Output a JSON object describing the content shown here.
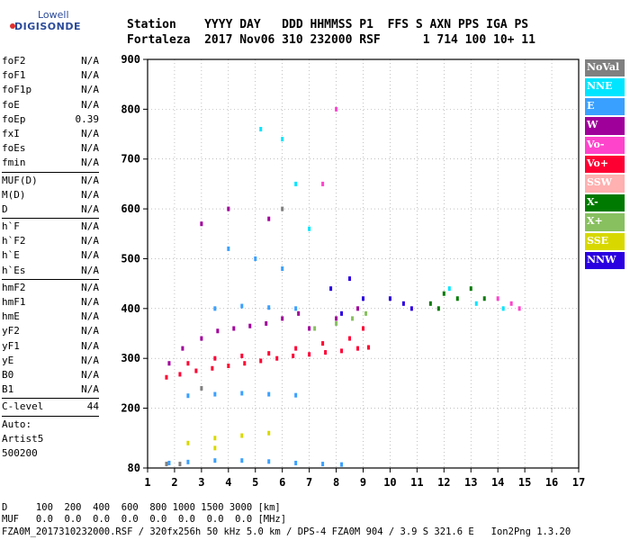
{
  "logo": {
    "line1": "Lowell",
    "line2": "DIGISONDE"
  },
  "header": {
    "line1": "Station    YYYY DAY   DDD HHMMSS P1  FFS S AXN PPS IGA PS",
    "line2": "Fortaleza  2017 Nov06 310 232000 RSF      1 714 100 10+ 11"
  },
  "scalars_group1": [
    {
      "name": "foF2",
      "value": "N/A"
    },
    {
      "name": "foF1",
      "value": "N/A"
    },
    {
      "name": "foF1p",
      "value": "N/A"
    },
    {
      "name": "foE",
      "value": "N/A"
    },
    {
      "name": "foEp",
      "value": "0.39"
    },
    {
      "name": "fxI",
      "value": "N/A"
    },
    {
      "name": "foEs",
      "value": "N/A"
    },
    {
      "name": "fmin",
      "value": "N/A"
    }
  ],
  "scalars_group2": [
    {
      "name": "MUF(D)",
      "value": "N/A"
    },
    {
      "name": "M(D)",
      "value": "N/A"
    },
    {
      "name": "D",
      "value": "N/A"
    }
  ],
  "scalars_group3": [
    {
      "name": "h`F",
      "value": "N/A"
    },
    {
      "name": "h`F2",
      "value": "N/A"
    },
    {
      "name": "h`E",
      "value": "N/A"
    },
    {
      "name": "h`Es",
      "value": "N/A"
    }
  ],
  "scalars_group4": [
    {
      "name": "hmF2",
      "value": "N/A"
    },
    {
      "name": "hmF1",
      "value": "N/A"
    },
    {
      "name": "hmE",
      "value": "N/A"
    },
    {
      "name": "yF2",
      "value": "N/A"
    },
    {
      "name": "yF1",
      "value": "N/A"
    },
    {
      "name": "yE",
      "value": "N/A"
    },
    {
      "name": "B0",
      "value": "N/A"
    },
    {
      "name": "B1",
      "value": "N/A"
    }
  ],
  "scalars_group5": [
    {
      "name": "C-level",
      "value": "44"
    }
  ],
  "autoscale": {
    "line1": "Auto:",
    "line2": "Artist5",
    "line3": "500200"
  },
  "legend": [
    {
      "label": "NoVal",
      "color": "#808080"
    },
    {
      "label": "NNE",
      "color": "#00e5ff"
    },
    {
      "label": "E",
      "color": "#3aa0ff"
    },
    {
      "label": "W",
      "color": "#a0009a"
    },
    {
      "label": "Vo-",
      "color": "#ff44cc"
    },
    {
      "label": "Vo+",
      "color": "#ff0033"
    },
    {
      "label": "SSW",
      "color": "#ffb0b0"
    },
    {
      "label": "X-",
      "color": "#007a00"
    },
    {
      "label": "X+",
      "color": "#88c060"
    },
    {
      "label": "SSE",
      "color": "#d8d800"
    },
    {
      "label": "NNW",
      "color": "#2a00e0"
    }
  ],
  "footer": {
    "line1": "D     100  200  400  600  800 1000 1500 3000 [km]",
    "line2": "MUF   0.0  0.0  0.0  0.0  0.0  0.0  0.0  0.0 [MHz]",
    "line3": "FZA0M_2017310232000.RSF / 320fx256h 50 kHz 5.0 km / DPS-4 FZA0M 904 / 3.9 S 321.6 E   Ion2Png 1.3.20"
  },
  "chart_data": {
    "type": "scatter",
    "title": "",
    "xlabel": "",
    "ylabel": "",
    "xlim": [
      1,
      17
    ],
    "ylim": [
      80,
      900
    ],
    "x_ticks": [
      1,
      2,
      3,
      4,
      5,
      6,
      7,
      8,
      9,
      10,
      11,
      12,
      13,
      14,
      15,
      16,
      17
    ],
    "y_ticks": [
      80,
      200,
      300,
      400,
      500,
      600,
      700,
      800,
      900
    ],
    "grid": "dotted",
    "series": [
      {
        "name": "Vo+",
        "color": "#ff0033",
        "points": [
          [
            1.7,
            262
          ],
          [
            2.2,
            268
          ],
          [
            2.8,
            275
          ],
          [
            3.4,
            280
          ],
          [
            4.0,
            285
          ],
          [
            4.6,
            290
          ],
          [
            5.2,
            295
          ],
          [
            5.8,
            300
          ],
          [
            6.4,
            305
          ],
          [
            7.0,
            308
          ],
          [
            7.6,
            312
          ],
          [
            8.2,
            315
          ],
          [
            8.8,
            320
          ],
          [
            9.2,
            322
          ],
          [
            2.5,
            290
          ],
          [
            3.5,
            300
          ],
          [
            4.5,
            305
          ],
          [
            5.5,
            310
          ],
          [
            6.5,
            320
          ],
          [
            7.5,
            330
          ],
          [
            8.5,
            340
          ],
          [
            9.0,
            360
          ]
        ]
      },
      {
        "name": "W",
        "color": "#a0009a",
        "points": [
          [
            1.8,
            290
          ],
          [
            2.3,
            320
          ],
          [
            3.0,
            340
          ],
          [
            3.6,
            355
          ],
          [
            4.2,
            360
          ],
          [
            4.8,
            365
          ],
          [
            5.4,
            370
          ],
          [
            6.0,
            380
          ],
          [
            6.6,
            390
          ],
          [
            3.0,
            570
          ],
          [
            4.0,
            600
          ],
          [
            5.5,
            580
          ],
          [
            7.0,
            360
          ],
          [
            8.0,
            380
          ],
          [
            8.8,
            400
          ]
        ]
      },
      {
        "name": "E",
        "color": "#3aa0ff",
        "points": [
          [
            1.8,
            90
          ],
          [
            2.5,
            92
          ],
          [
            3.5,
            95
          ],
          [
            4.5,
            95
          ],
          [
            5.5,
            93
          ],
          [
            6.5,
            90
          ],
          [
            7.5,
            88
          ],
          [
            8.2,
            87
          ],
          [
            2.5,
            225
          ],
          [
            3.5,
            228
          ],
          [
            4.5,
            230
          ],
          [
            5.5,
            228
          ],
          [
            6.5,
            226
          ],
          [
            3.5,
            400
          ],
          [
            4.5,
            405
          ],
          [
            5.5,
            402
          ],
          [
            6.5,
            400
          ],
          [
            4.0,
            520
          ],
          [
            5.0,
            500
          ],
          [
            6.0,
            480
          ]
        ]
      },
      {
        "name": "NNW",
        "color": "#2a00e0",
        "points": [
          [
            7.8,
            440
          ],
          [
            8.5,
            460
          ],
          [
            9.0,
            420
          ],
          [
            10.0,
            420
          ],
          [
            10.5,
            410
          ],
          [
            10.8,
            400
          ],
          [
            8.2,
            390
          ]
        ]
      },
      {
        "name": "X-",
        "color": "#007a00",
        "points": [
          [
            11.5,
            410
          ],
          [
            12.0,
            430
          ],
          [
            12.5,
            420
          ],
          [
            13.0,
            440
          ],
          [
            13.5,
            420
          ],
          [
            11.8,
            400
          ]
        ]
      },
      {
        "name": "NNE",
        "color": "#00e5ff",
        "points": [
          [
            5.2,
            760
          ],
          [
            6.0,
            740
          ],
          [
            6.5,
            650
          ],
          [
            7.0,
            560
          ],
          [
            12.2,
            440
          ],
          [
            13.2,
            410
          ],
          [
            14.2,
            400
          ]
        ]
      },
      {
        "name": "Vo-",
        "color": "#ff44cc",
        "points": [
          [
            14.0,
            420
          ],
          [
            14.5,
            410
          ],
          [
            14.8,
            400
          ],
          [
            7.5,
            650
          ],
          [
            8.0,
            800
          ]
        ]
      },
      {
        "name": "SSE",
        "color": "#d8d800",
        "points": [
          [
            3.5,
            140
          ],
          [
            4.5,
            145
          ],
          [
            5.5,
            150
          ],
          [
            2.5,
            130
          ],
          [
            3.5,
            120
          ]
        ]
      },
      {
        "name": "X+",
        "color": "#88c060",
        "points": [
          [
            7.2,
            360
          ],
          [
            8.0,
            370
          ],
          [
            8.6,
            380
          ],
          [
            9.1,
            390
          ]
        ]
      },
      {
        "name": "NoVal",
        "color": "#808080",
        "points": [
          [
            1.7,
            88
          ],
          [
            2.2,
            88
          ],
          [
            3.0,
            240
          ],
          [
            6.0,
            600
          ]
        ]
      }
    ]
  }
}
